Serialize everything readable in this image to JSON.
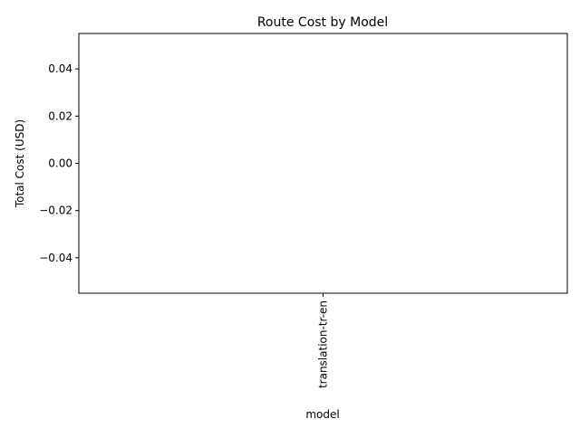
{
  "chart_data": {
    "type": "bar",
    "title": "Route Cost by Model",
    "xlabel": "model",
    "ylabel": "Total Cost (USD)",
    "categories": [
      "translation-tr-en"
    ],
    "values": [
      0
    ],
    "ylim": [
      -0.055,
      0.055
    ],
    "yticks": [
      -0.04,
      -0.02,
      0.0,
      0.02,
      0.04
    ],
    "ytick_labels": [
      "−0.04",
      "−0.02",
      "0.00",
      "0.02",
      "0.04"
    ],
    "grid": false,
    "legend": "none",
    "colors": {
      "bar": "#1f77b4",
      "axis": "#000000",
      "background": "#ffffff"
    }
  }
}
